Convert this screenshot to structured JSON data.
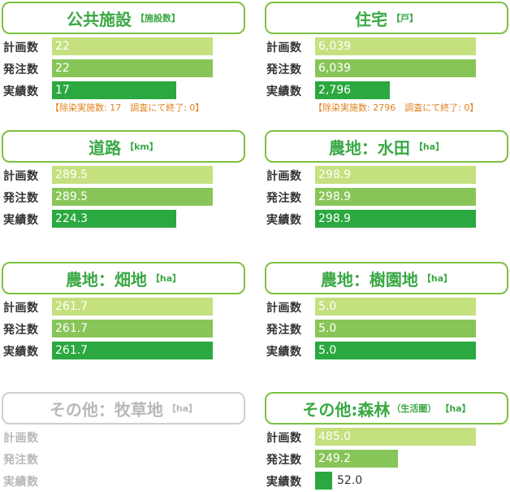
{
  "row_labels": {
    "plan": "計画数",
    "order": "発注数",
    "done": "実績数"
  },
  "panels": [
    {
      "title": "公共施設",
      "unit": "【施設数】",
      "sub": "",
      "plan": "22",
      "order": "22",
      "done": "17",
      "fill": {
        "plan": 1.0,
        "order": 1.0,
        "done": 0.773
      },
      "note": "【除染実施数: 17　調査にて終了: 0】",
      "disabled": false
    },
    {
      "title": "住宅",
      "unit": "【戸】",
      "sub": "",
      "plan": "6,039",
      "order": "6,039",
      "done": "2,796",
      "fill": {
        "plan": 1.0,
        "order": 1.0,
        "done": 0.463
      },
      "note": "【除染実施数: 2796　調査にて終了: 0】",
      "disabled": false
    },
    {
      "title": "道路",
      "unit": "【km】",
      "sub": "",
      "plan": "289.5",
      "order": "289.5",
      "done": "224.3",
      "fill": {
        "plan": 1.0,
        "order": 1.0,
        "done": 0.775
      },
      "note": "",
      "disabled": false
    },
    {
      "title": "農地：水田",
      "unit": "【ha】",
      "sub": "",
      "plan": "298.9",
      "order": "298.9",
      "done": "298.9",
      "fill": {
        "plan": 1.0,
        "order": 1.0,
        "done": 1.0
      },
      "note": "",
      "disabled": false
    },
    {
      "title": "農地：畑地",
      "unit": "【ha】",
      "sub": "",
      "plan": "261.7",
      "order": "261.7",
      "done": "261.7",
      "fill": {
        "plan": 1.0,
        "order": 1.0,
        "done": 1.0
      },
      "note": "",
      "disabled": false
    },
    {
      "title": "農地：樹園地",
      "unit": "【ha】",
      "sub": "",
      "plan": "5.0",
      "order": "5.0",
      "done": "5.0",
      "fill": {
        "plan": 1.0,
        "order": 1.0,
        "done": 1.0
      },
      "note": "",
      "disabled": false
    },
    {
      "title": "その他：牧草地",
      "unit": "【ha】",
      "sub": "",
      "plan": "",
      "order": "",
      "done": "",
      "fill": {
        "plan": 0,
        "order": 0,
        "done": 0
      },
      "note": "",
      "disabled": true
    },
    {
      "title": "その他:森林",
      "unit": "【ha】",
      "sub": "（生活圏）",
      "plan": "485.0",
      "order": "249.2",
      "done": "52.0",
      "fill": {
        "plan": 1.0,
        "order": 0.514,
        "done": 0.107
      },
      "note": "",
      "disabled": false
    }
  ]
}
